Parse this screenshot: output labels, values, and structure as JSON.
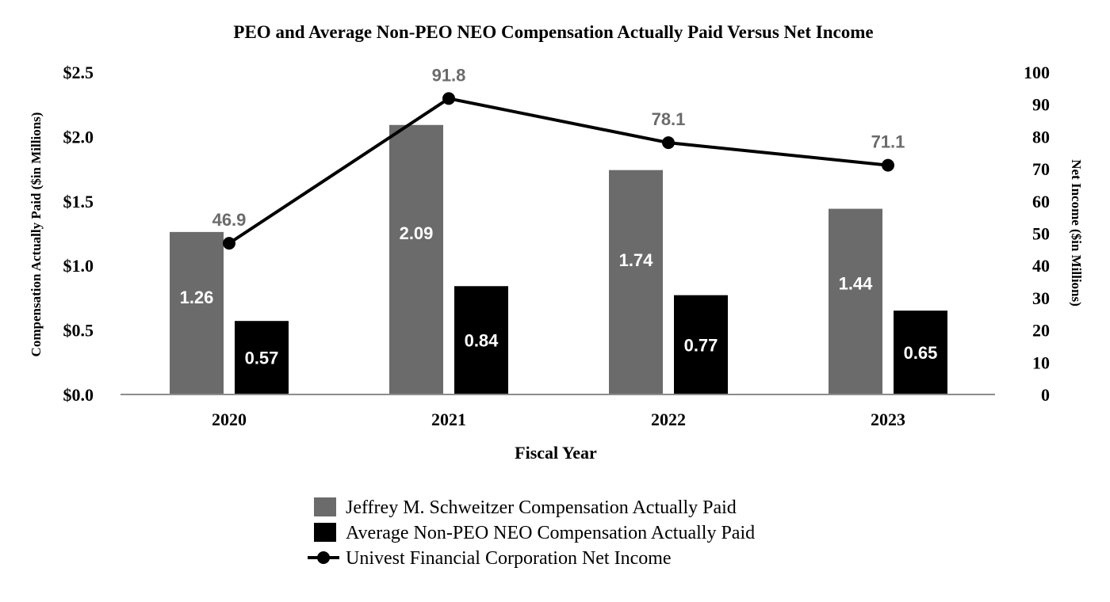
{
  "chart_data": {
    "type": "bar",
    "title": "PEO and Average Non-PEO NEO Compensation Actually Paid Versus Net Income",
    "xlabel": "Fiscal Year",
    "ylabel": "Compensation Actually Paid ($in Millions)",
    "y2label": "Net Income ($in Millions)",
    "categories": [
      "2020",
      "2021",
      "2022",
      "2023"
    ],
    "ylim": [
      0,
      2.5
    ],
    "y_ticks": [
      0,
      0.5,
      1.0,
      1.5,
      2.0,
      2.5
    ],
    "y_tick_labels": [
      "$0.0",
      "$0.5",
      "$1.0",
      "$1.5",
      "$2.0",
      "$2.5"
    ],
    "y2lim": [
      0,
      100
    ],
    "y2_ticks": [
      0,
      10,
      20,
      30,
      40,
      50,
      60,
      70,
      80,
      90,
      100
    ],
    "y2_tick_labels": [
      "0",
      "10",
      "20",
      "30",
      "40",
      "50",
      "60",
      "70",
      "80",
      "90",
      "100"
    ],
    "grid": false,
    "legend_position": "bottom",
    "series": [
      {
        "name": "Jeffrey M. Schweitzer Compensation Actually Paid",
        "type": "bar",
        "axis": "left",
        "color": "#6b6b6b",
        "values": [
          1.26,
          2.09,
          1.74,
          1.44
        ],
        "labels": [
          "1.26",
          "2.09",
          "1.74",
          "1.44"
        ]
      },
      {
        "name": "Average Non-PEO NEO Compensation Actually Paid",
        "type": "bar",
        "axis": "left",
        "color": "#000000",
        "values": [
          0.57,
          0.84,
          0.77,
          0.65
        ],
        "labels": [
          "0.57",
          "0.84",
          "0.77",
          "0.65"
        ]
      },
      {
        "name": "Univest Financial Corporation Net Income",
        "type": "line",
        "axis": "right",
        "color": "#000000",
        "label_color": "#6b6b6b",
        "values": [
          46.9,
          91.8,
          78.1,
          71.1
        ],
        "labels": [
          "46.9",
          "91.8",
          "78.1",
          "71.1"
        ]
      }
    ]
  }
}
